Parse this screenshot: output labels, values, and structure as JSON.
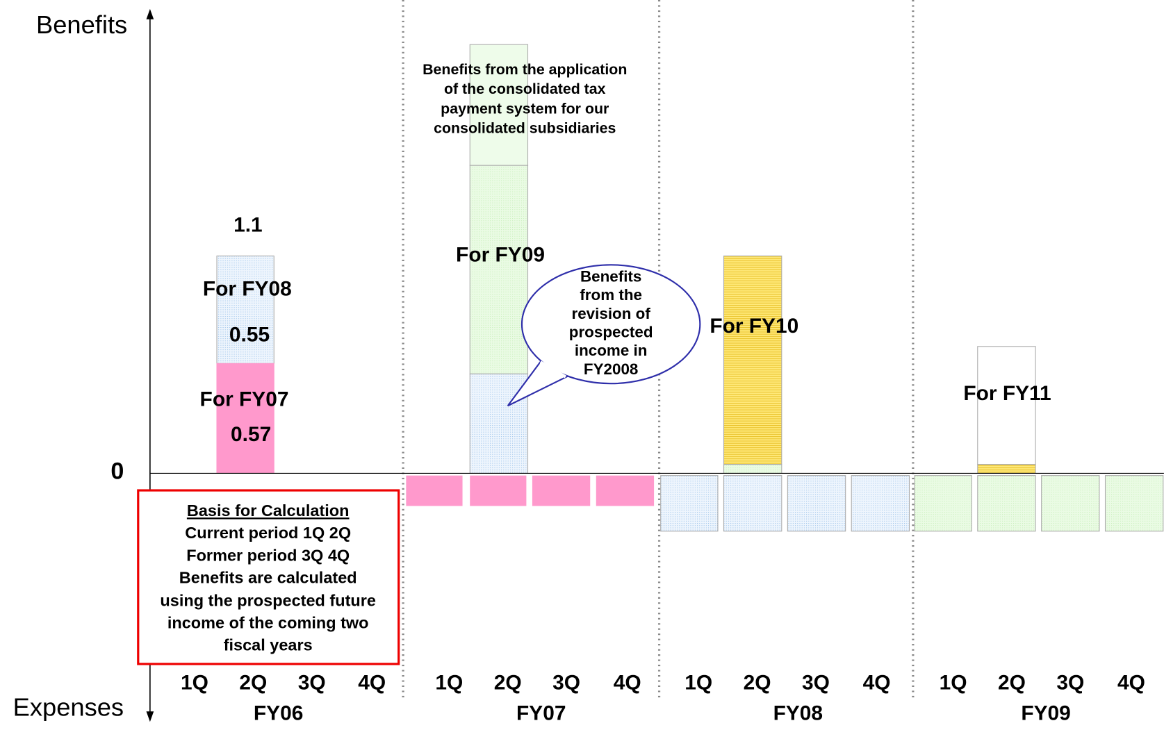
{
  "axis": {
    "top_label": "Benefits",
    "bottom_label": "Expenses",
    "zero_label": "0"
  },
  "fy06_bar": {
    "total_label": "1.1",
    "upper_label": "For FY08",
    "upper_value": "0.55",
    "lower_label": "For FY07",
    "lower_value": "0.57"
  },
  "fy07_bar": {
    "annotation": [
      "Benefits from the application",
      "of the consolidated tax",
      "payment system for our",
      "consolidated subsidiaries"
    ],
    "label": "For FY09"
  },
  "callout": [
    "Benefits",
    "from the",
    "revision of",
    "prospected",
    "income in",
    "FY2008"
  ],
  "fy08_bar": {
    "label": "For FY10"
  },
  "fy09_bar": {
    "label": "For FY11"
  },
  "basis_box": {
    "title": "Basis for Calculation",
    "lines": [
      "Current period   1Q 2Q",
      "Former period   3Q 4Q",
      "Benefits are calculated",
      "using the prospected future",
      "income of the coming two",
      "fiscal years"
    ]
  },
  "fiscal_years": [
    {
      "name": "FY06",
      "quarters": [
        "1Q",
        "2Q",
        "3Q",
        "4Q"
      ]
    },
    {
      "name": "FY07",
      "quarters": [
        "1Q",
        "2Q",
        "3Q",
        "4Q"
      ]
    },
    {
      "name": "FY08",
      "quarters": [
        "1Q",
        "2Q",
        "3Q",
        "4Q"
      ]
    },
    {
      "name": "FY09",
      "quarters": [
        "1Q",
        "2Q",
        "3Q",
        "4Q"
      ]
    }
  ]
}
